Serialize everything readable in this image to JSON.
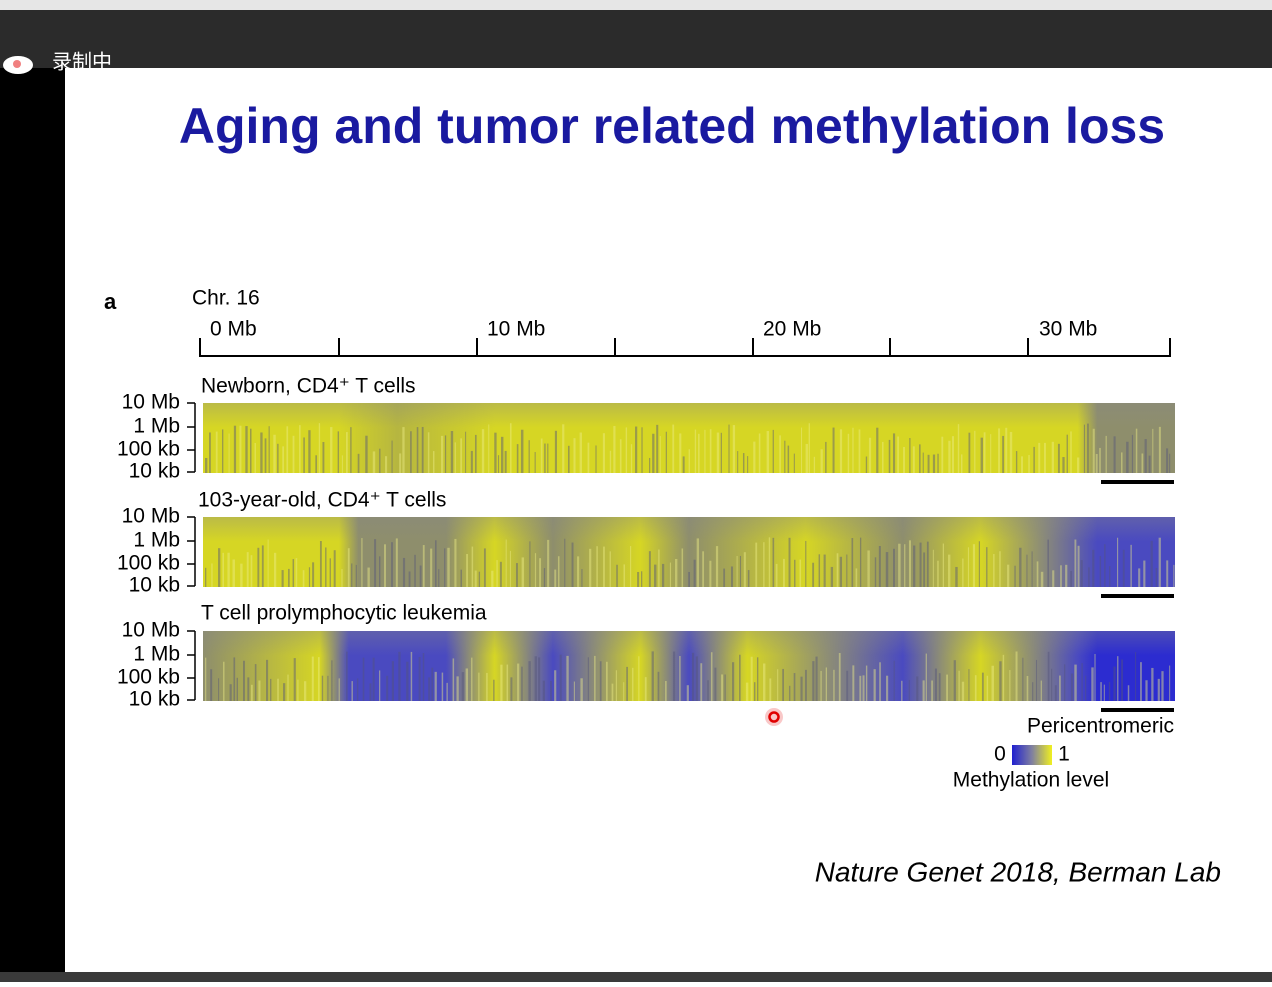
{
  "recorder": {
    "status": "录制中"
  },
  "slide": {
    "title": "Aging and tumor related methylation loss",
    "figure": {
      "panel_letter": "a",
      "chromosome": "Chr. 16",
      "position_labels": [
        "0 Mb",
        "10 Mb",
        "20 Mb",
        "30 Mb"
      ],
      "tracks": [
        {
          "label": "Newborn, CD4⁺ T cells",
          "scale_labels": [
            "10 Mb",
            "1 Mb",
            "100 kb",
            "10 kb"
          ]
        },
        {
          "label": "103-year-old, CD4⁺ T cells",
          "scale_labels": [
            "10 Mb",
            "1 Mb",
            "100 kb",
            "10 kb"
          ]
        },
        {
          "label": "T cell prolymphocytic leukemia",
          "scale_labels": [
            "10 Mb",
            "1 Mb",
            "100 kb",
            "10 kb"
          ]
        }
      ],
      "legend": {
        "region": "Pericentromeric",
        "min": "0",
        "max": "1",
        "title": "Methylation level"
      }
    },
    "citation": "Nature Genet 2018, Berman Lab"
  }
}
